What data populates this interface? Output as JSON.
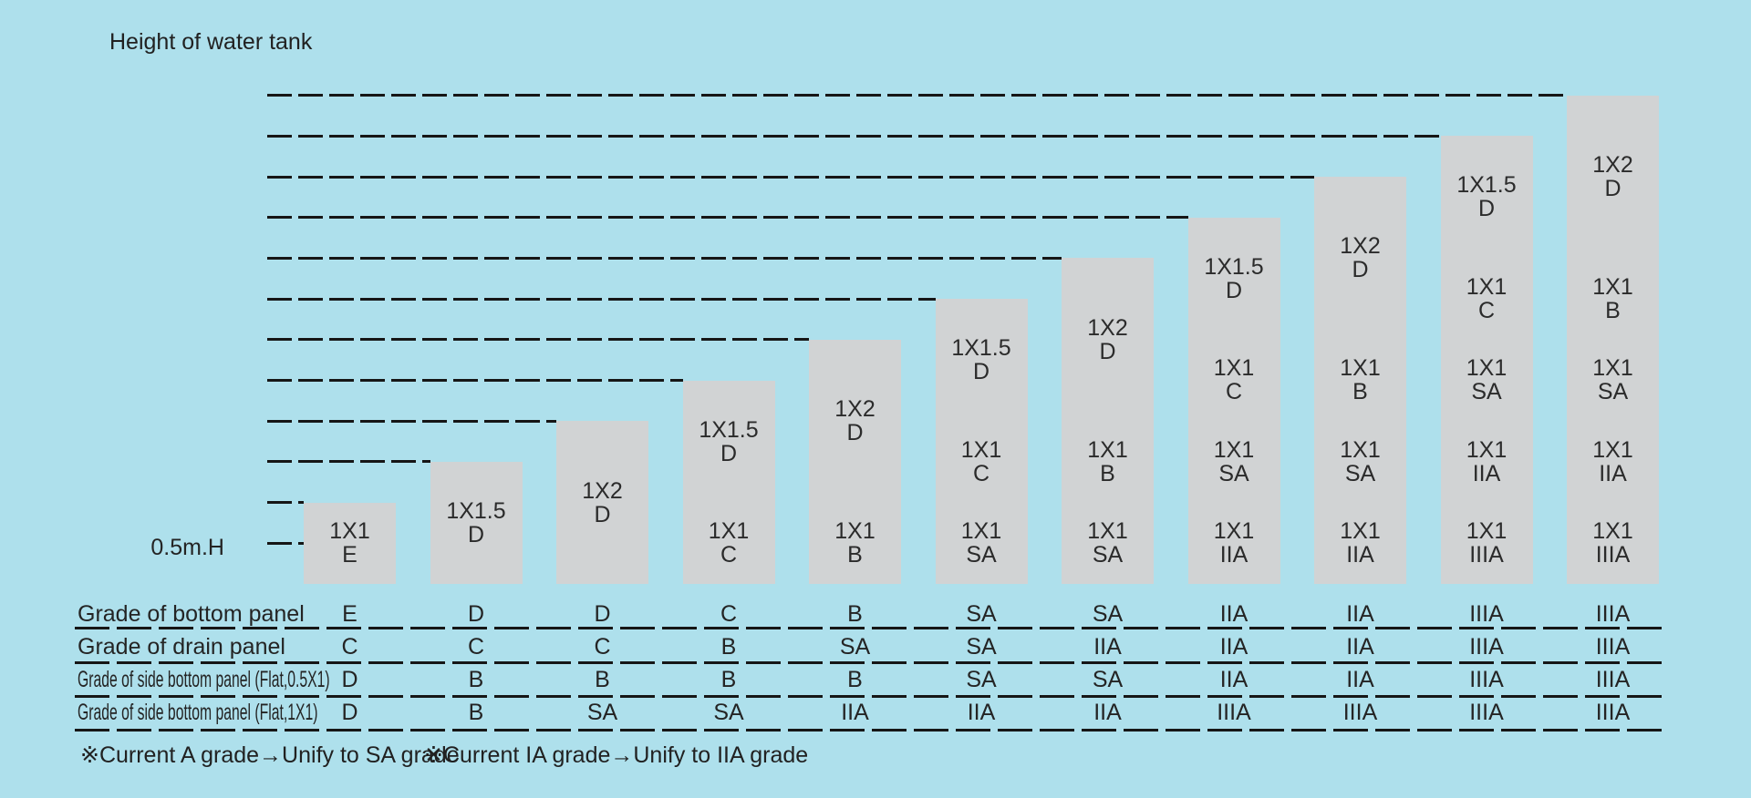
{
  "title": "Height of water tank",
  "axis_label": "0.5m.H",
  "notes": [
    "※Current A grade→Unify to SA grade",
    "※Current IA grade→Unify to IIA grade"
  ],
  "colors": {
    "background": "#aee0ec",
    "bar": "#d1d3d4",
    "text": "#242424",
    "line": "#161616"
  },
  "chart_data": {
    "type": "bar",
    "title": "Height of water tank",
    "ylabel": "Height of water tank",
    "baseline_label": "0.5m.H",
    "step_m": 0.5,
    "ylim_m": [
      0,
      6
    ],
    "grid": "dashed horizontal level lines at each tank-top height plus 0.5m",
    "legend_position": "none",
    "values_m": [
      1.0,
      1.5,
      2.0,
      2.5,
      3.0,
      3.5,
      4.0,
      4.5,
      5.0,
      5.5,
      6.0
    ],
    "bars": [
      {
        "height_m": 1.0,
        "tiers": [
          {
            "size": "1X1",
            "grade": "E"
          }
        ]
      },
      {
        "height_m": 1.5,
        "tiers": [
          {
            "size": "1X1.5",
            "grade": "D"
          }
        ]
      },
      {
        "height_m": 2.0,
        "tiers": [
          {
            "size": "1X2",
            "grade": "D"
          }
        ]
      },
      {
        "height_m": 2.5,
        "tiers": [
          {
            "size": "1X1.5",
            "grade": "D"
          },
          {
            "size": "1X1",
            "grade": "C"
          }
        ]
      },
      {
        "height_m": 3.0,
        "tiers": [
          {
            "size": "1X2",
            "grade": "D"
          },
          {
            "size": "1X1",
            "grade": "B"
          }
        ]
      },
      {
        "height_m": 3.5,
        "tiers": [
          {
            "size": "1X1.5",
            "grade": "D"
          },
          {
            "size": "1X1",
            "grade": "C"
          },
          {
            "size": "1X1",
            "grade": "SA"
          }
        ]
      },
      {
        "height_m": 4.0,
        "tiers": [
          {
            "size": "1X2",
            "grade": "D"
          },
          {
            "size": "1X1",
            "grade": "B"
          },
          {
            "size": "1X1",
            "grade": "SA"
          }
        ]
      },
      {
        "height_m": 4.5,
        "tiers": [
          {
            "size": "1X1.5",
            "grade": "D"
          },
          {
            "size": "1X1",
            "grade": "C"
          },
          {
            "size": "1X1",
            "grade": "SA"
          },
          {
            "size": "1X1",
            "grade": "IIA"
          }
        ]
      },
      {
        "height_m": 5.0,
        "tiers": [
          {
            "size": "1X2",
            "grade": "D"
          },
          {
            "size": "1X1",
            "grade": "B"
          },
          {
            "size": "1X1",
            "grade": "SA"
          },
          {
            "size": "1X1",
            "grade": "IIA"
          }
        ]
      },
      {
        "height_m": 5.5,
        "tiers": [
          {
            "size": "1X1.5",
            "grade": "D"
          },
          {
            "size": "1X1",
            "grade": "C"
          },
          {
            "size": "1X1",
            "grade": "SA"
          },
          {
            "size": "1X1",
            "grade": "IIA"
          },
          {
            "size": "1X1",
            "grade": "IIIA"
          }
        ]
      },
      {
        "height_m": 6.0,
        "tiers": [
          {
            "size": "1X2",
            "grade": "D"
          },
          {
            "size": "1X1",
            "grade": "B"
          },
          {
            "size": "1X1",
            "grade": "SA"
          },
          {
            "size": "1X1",
            "grade": "IIA"
          },
          {
            "size": "1X1",
            "grade": "IIIA"
          }
        ]
      }
    ]
  },
  "table": {
    "rows": [
      {
        "label": "Grade of bottom panel",
        "values": [
          "E",
          "D",
          "D",
          "C",
          "B",
          "SA",
          "SA",
          "IIA",
          "IIA",
          "IIIA",
          "IIIA"
        ]
      },
      {
        "label": "Grade of drain panel",
        "values": [
          "C",
          "C",
          "C",
          "B",
          "SA",
          "SA",
          "IIA",
          "IIA",
          "IIA",
          "IIIA",
          "IIIA"
        ]
      },
      {
        "label": "Grade of side bottom panel (Flat,0.5X1)",
        "values": [
          "D",
          "B",
          "B",
          "B",
          "B",
          "SA",
          "SA",
          "IIA",
          "IIA",
          "IIIA",
          "IIIA"
        ]
      },
      {
        "label": "Grade of side bottom panel (Flat,1X1)",
        "values": [
          "D",
          "B",
          "SA",
          "SA",
          "IIA",
          "IIA",
          "IIA",
          "IIIA",
          "IIIA",
          "IIIA",
          "IIIA"
        ]
      }
    ]
  }
}
